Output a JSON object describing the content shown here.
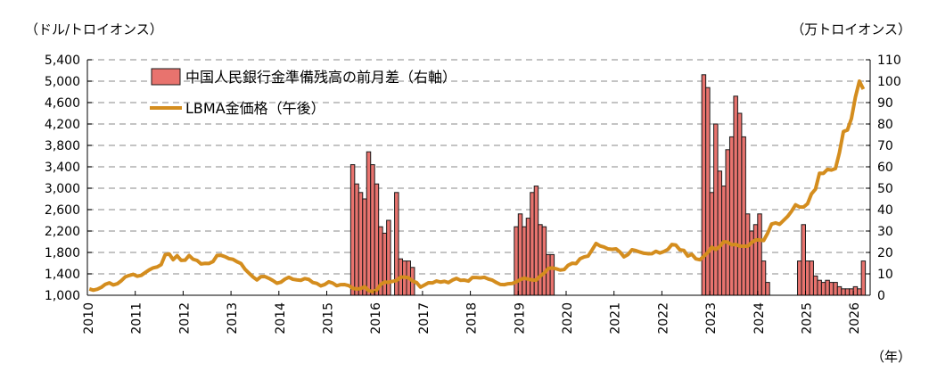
{
  "chart_data": {
    "type": "bar+line",
    "left_axis_label": "（ドル/トロイオンス）",
    "right_axis_label": "（万トロイオンス）",
    "x_axis_label": "（年）",
    "left_ylim": [
      1000,
      5400
    ],
    "right_ylim": [
      0,
      110
    ],
    "left_ticks": [
      "1,000",
      "1,400",
      "1,800",
      "2,200",
      "2,600",
      "3,000",
      "3,400",
      "3,800",
      "4,200",
      "4,600",
      "5,000",
      "5,400"
    ],
    "right_ticks": [
      "0",
      "10",
      "20",
      "30",
      "40",
      "50",
      "60",
      "70",
      "80",
      "90",
      "100",
      "110"
    ],
    "x_ticks": [
      "2010",
      "2011",
      "2012",
      "2013",
      "2014",
      "2015",
      "2016",
      "2017",
      "2018",
      "2019",
      "2020",
      "2021",
      "2022",
      "2023",
      "2024",
      "2025",
      "2026"
    ],
    "grid": true,
    "legend_position": "top-left",
    "colors": {
      "bar": "#e8736e",
      "bar_edge": "#1a1a1a",
      "line": "#d48d1e",
      "grid": "#b0b0b0"
    },
    "series": [
      {
        "name": "中国人民銀行金準備残高の前月差（右軸）",
        "type": "bar",
        "axis": "right",
        "points": [
          [
            "2015-07",
            61
          ],
          [
            "2015-08",
            52
          ],
          [
            "2015-09",
            48
          ],
          [
            "2015-10",
            45
          ],
          [
            "2015-11",
            67
          ],
          [
            "2015-12",
            61
          ],
          [
            "2016-01",
            52
          ],
          [
            "2016-02",
            32
          ],
          [
            "2016-03",
            29
          ],
          [
            "2016-04",
            35
          ],
          [
            "2016-05",
            0
          ],
          [
            "2016-06",
            48
          ],
          [
            "2016-07",
            17
          ],
          [
            "2016-08",
            16
          ],
          [
            "2016-09",
            16
          ],
          [
            "2016-10",
            13
          ],
          [
            "2018-12",
            32
          ],
          [
            "2019-01",
            38
          ],
          [
            "2019-02",
            32
          ],
          [
            "2019-03",
            36
          ],
          [
            "2019-04",
            48
          ],
          [
            "2019-05",
            51
          ],
          [
            "2019-06",
            33
          ],
          [
            "2019-07",
            32
          ],
          [
            "2019-08",
            19
          ],
          [
            "2019-09",
            19
          ],
          [
            "2022-11",
            103
          ],
          [
            "2022-12",
            97
          ],
          [
            "2023-01",
            48
          ],
          [
            "2023-02",
            80
          ],
          [
            "2023-03",
            58
          ],
          [
            "2023-04",
            51
          ],
          [
            "2023-05",
            68
          ],
          [
            "2023-06",
            74
          ],
          [
            "2023-07",
            93
          ],
          [
            "2023-08",
            85
          ],
          [
            "2023-09",
            74
          ],
          [
            "2023-10",
            38
          ],
          [
            "2023-11",
            30
          ],
          [
            "2023-12",
            33
          ],
          [
            "2024-01",
            38
          ],
          [
            "2024-02",
            16
          ],
          [
            "2024-03",
            6
          ],
          [
            "2024-11",
            16
          ],
          [
            "2024-12",
            33
          ],
          [
            "2025-01",
            16
          ],
          [
            "2025-02",
            16
          ],
          [
            "2025-03",
            9
          ],
          [
            "2025-04",
            7
          ],
          [
            "2025-05",
            6
          ],
          [
            "2025-06",
            7
          ],
          [
            "2025-07",
            6
          ],
          [
            "2025-08",
            6
          ],
          [
            "2025-09",
            4
          ],
          [
            "2025-10",
            3
          ],
          [
            "2025-11",
            3
          ],
          [
            "2025-12",
            3
          ],
          [
            "2026-01",
            4
          ],
          [
            "2026-02",
            3
          ],
          [
            "2026-03",
            16
          ]
        ]
      },
      {
        "name": "LBMA金価格（午後）",
        "type": "line",
        "axis": "left",
        "monthly": {
          "2010": [
            1118,
            1095,
            1113,
            1148,
            1205,
            1232,
            1193,
            1215,
            1271,
            1343,
            1370,
            1391
          ],
          "2011": [
            1356,
            1372,
            1424,
            1474,
            1512,
            1529,
            1572,
            1756,
            1772,
            1665,
            1739,
            1652
          ],
          "2012": [
            1656,
            1742,
            1673,
            1650,
            1585,
            1596,
            1594,
            1630,
            1744,
            1747,
            1721,
            1684
          ],
          "2013": [
            1671,
            1627,
            1593,
            1487,
            1414,
            1343,
            1286,
            1347,
            1349,
            1316,
            1275,
            1225
          ],
          "2014": [
            1244,
            1300,
            1336,
            1299,
            1287,
            1279,
            1311,
            1296,
            1239,
            1222,
            1176,
            1201
          ],
          "2015": [
            1251,
            1227,
            1179,
            1198,
            1199,
            1181,
            1131,
            1117,
            1125,
            1159,
            1086,
            1068
          ],
          "2016": [
            1097,
            1200,
            1246,
            1242,
            1260,
            1276,
            1337,
            1341,
            1326,
            1267,
            1238,
            1152
          ],
          "2017": [
            1192,
            1234,
            1231,
            1266,
            1246,
            1260,
            1236,
            1283,
            1315,
            1280,
            1283,
            1265
          ],
          "2018": [
            1331,
            1331,
            1325,
            1335,
            1303,
            1282,
            1238,
            1202,
            1198,
            1215,
            1221,
            1250
          ],
          "2019": [
            1291,
            1320,
            1300,
            1286,
            1284,
            1359,
            1413,
            1500,
            1510,
            1495,
            1471,
            1480
          ],
          "2020": [
            1560,
            1597,
            1591,
            1683,
            1716,
            1732,
            1847,
            1968,
            1921,
            1901,
            1866,
            1858
          ],
          "2021": [
            1867,
            1808,
            1718,
            1760,
            1850,
            1834,
            1807,
            1785,
            1776,
            1777,
            1821,
            1790
          ],
          "2022": [
            1817,
            1856,
            1948,
            1937,
            1849,
            1837,
            1732,
            1765,
            1681,
            1664,
            1726,
            1798
          ],
          "2023": [
            1898,
            1855,
            1912,
            2000,
            1992,
            1942,
            1951,
            1918,
            1916,
            1916,
            1985,
            2034
          ],
          "2024": [
            2034,
            2023,
            2158,
            2331,
            2352,
            2326,
            2398,
            2471,
            2570,
            2690,
            2650,
            2648
          ],
          "2025": [
            2709,
            2895,
            2983,
            3280,
            3278,
            3352,
            3340,
            3366,
            3665,
            4058,
            4087,
            4300
          ],
          "2026": [
            4700,
            5000,
            4850
          ]
        }
      }
    ]
  }
}
